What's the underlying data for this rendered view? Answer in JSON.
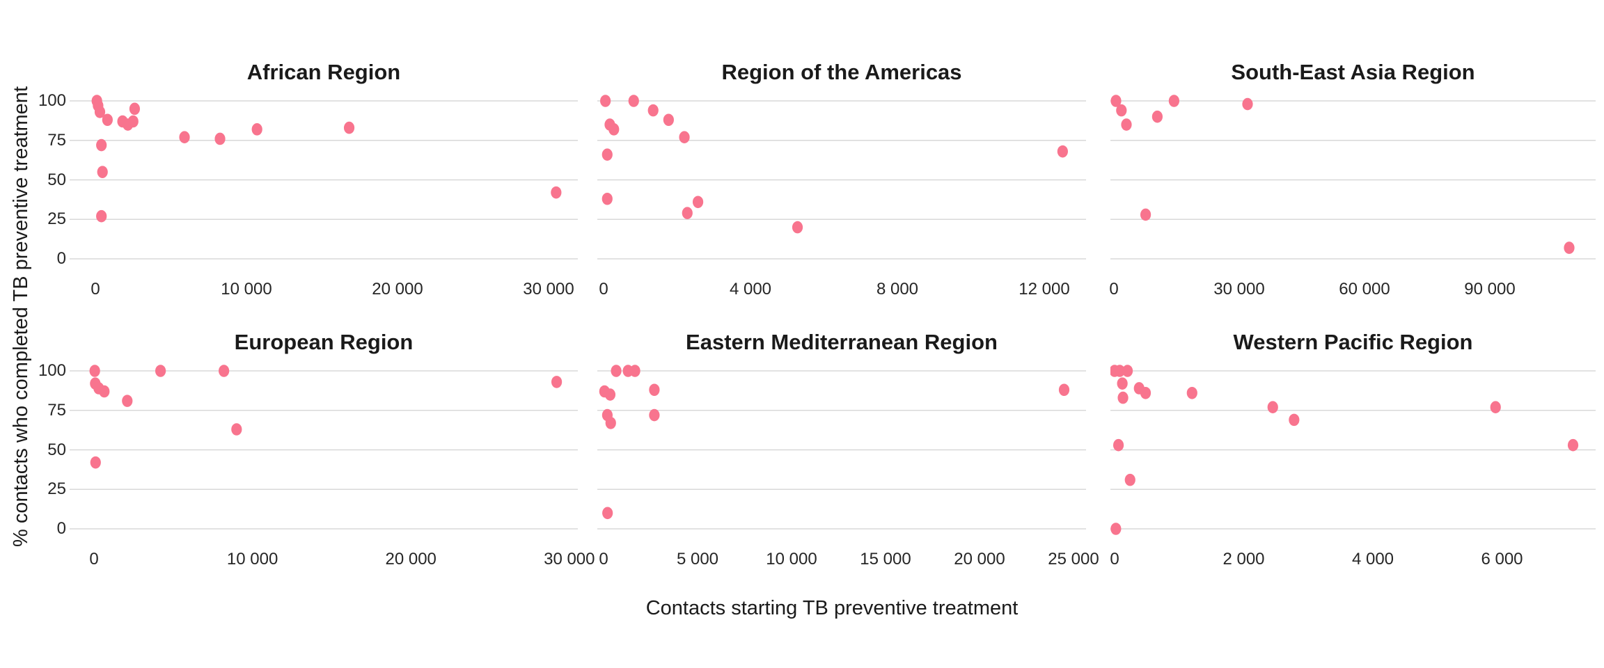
{
  "colors": {
    "dot": "#F8748E",
    "grid": "#D8D8D8",
    "text": "#1A1A1A",
    "tick_text": "#262626",
    "background": "#FFFFFF"
  },
  "chart_data": {
    "type": "scatter",
    "facets": "2 rows x 3 columns, one panel per WHO region",
    "x_label": "Contacts starting TB preventive treatment",
    "y_label": "% contacts who completed TB preventive treatment",
    "legend": "none",
    "grid": "horizontal gridlines only",
    "y_ticks": [
      {
        "label": "100",
        "value": 100
      },
      {
        "label": "75",
        "value": 75
      },
      {
        "label": "50",
        "value": 50
      },
      {
        "label": "25",
        "value": 25
      },
      {
        "label": "0",
        "value": 0
      }
    ],
    "ylim": [
      0,
      100
    ],
    "panels": [
      {
        "title": "African Region",
        "row": 0,
        "col": 0,
        "x_ticks": [
          {
            "label": "0",
            "value": 0
          },
          {
            "label": "10 000",
            "value": 10000
          },
          {
            "label": "20 000",
            "value": 20000
          },
          {
            "label": "30 000",
            "value": 30000
          }
        ],
        "x_max": 31500,
        "points": [
          [
            100,
            100
          ],
          [
            180,
            97
          ],
          [
            300,
            93
          ],
          [
            800,
            88
          ],
          [
            400,
            72
          ],
          [
            470,
            55
          ],
          [
            400,
            27
          ],
          [
            1800,
            87
          ],
          [
            2150,
            85
          ],
          [
            2500,
            87
          ],
          [
            2600,
            95
          ],
          [
            5900,
            77
          ],
          [
            8250,
            76
          ],
          [
            10700,
            82
          ],
          [
            16800,
            83
          ],
          [
            30500,
            42
          ]
        ]
      },
      {
        "title": "Region of the Americas",
        "row": 0,
        "col": 1,
        "x_ticks": [
          {
            "label": "0",
            "value": 0
          },
          {
            "label": "4 000",
            "value": 4000
          },
          {
            "label": "8 000",
            "value": 8000
          },
          {
            "label": "12 000",
            "value": 12000
          }
        ],
        "x_max": 13100,
        "points": [
          [
            50,
            100
          ],
          [
            820,
            100
          ],
          [
            1350,
            94
          ],
          [
            1770,
            88
          ],
          [
            2200,
            77
          ],
          [
            170,
            85
          ],
          [
            280,
            82
          ],
          [
            100,
            66
          ],
          [
            100,
            38
          ],
          [
            2280,
            29
          ],
          [
            2570,
            36
          ],
          [
            5280,
            20
          ],
          [
            12500,
            68
          ]
        ]
      },
      {
        "title": "South-East Asia Region",
        "row": 0,
        "col": 2,
        "x_ticks": [
          {
            "label": "0",
            "value": 0
          },
          {
            "label": "30 000",
            "value": 30000
          },
          {
            "label": "60 000",
            "value": 60000
          },
          {
            "label": "90 000",
            "value": 90000
          }
        ],
        "x_max": 115000,
        "points": [
          [
            500,
            100
          ],
          [
            1800,
            94
          ],
          [
            3000,
            85
          ],
          [
            10400,
            90
          ],
          [
            14400,
            100
          ],
          [
            32000,
            98
          ],
          [
            7600,
            28
          ],
          [
            109000,
            7
          ]
        ]
      },
      {
        "title": "European Region",
        "row": 1,
        "col": 0,
        "x_ticks": [
          {
            "label": "0",
            "value": 0
          },
          {
            "label": "10 000",
            "value": 10000
          },
          {
            "label": "20 000",
            "value": 20000
          },
          {
            "label": "30 000",
            "value": 30000
          }
        ],
        "x_max": 30500,
        "points": [
          [
            50,
            100
          ],
          [
            80,
            92
          ],
          [
            300,
            89
          ],
          [
            650,
            87
          ],
          [
            2100,
            81
          ],
          [
            4200,
            100
          ],
          [
            8200,
            100
          ],
          [
            9000,
            63
          ],
          [
            100,
            42
          ],
          [
            29200,
            93
          ]
        ]
      },
      {
        "title": "Eastern Mediterranean Region",
        "row": 1,
        "col": 1,
        "x_ticks": [
          {
            "label": "0",
            "value": 0
          },
          {
            "label": "5 000",
            "value": 5000
          },
          {
            "label": "10 000",
            "value": 10000
          },
          {
            "label": "15 000",
            "value": 15000
          },
          {
            "label": "20 000",
            "value": 20000
          },
          {
            "label": "25 000",
            "value": 25000
          }
        ],
        "x_max": 25700,
        "points": [
          [
            670,
            100
          ],
          [
            1300,
            100
          ],
          [
            1670,
            100
          ],
          [
            50,
            87
          ],
          [
            350,
            85
          ],
          [
            200,
            72
          ],
          [
            380,
            67
          ],
          [
            2700,
            88
          ],
          [
            2700,
            72
          ],
          [
            210,
            10
          ],
          [
            24500,
            88
          ]
        ]
      },
      {
        "title": "Western Pacific Region",
        "row": 1,
        "col": 2,
        "x_ticks": [
          {
            "label": "0",
            "value": 0
          },
          {
            "label": "2 000",
            "value": 2000
          },
          {
            "label": "4 000",
            "value": 4000
          },
          {
            "label": "6 000",
            "value": 6000
          }
        ],
        "x_max": 7450,
        "points": [
          [
            0,
            100
          ],
          [
            80,
            100
          ],
          [
            200,
            100
          ],
          [
            120,
            92
          ],
          [
            130,
            83
          ],
          [
            380,
            89
          ],
          [
            480,
            86
          ],
          [
            1200,
            86
          ],
          [
            2450,
            77
          ],
          [
            2780,
            69
          ],
          [
            60,
            53
          ],
          [
            240,
            31
          ],
          [
            20,
            0
          ],
          [
            5900,
            77
          ],
          [
            7100,
            53
          ]
        ]
      }
    ]
  }
}
